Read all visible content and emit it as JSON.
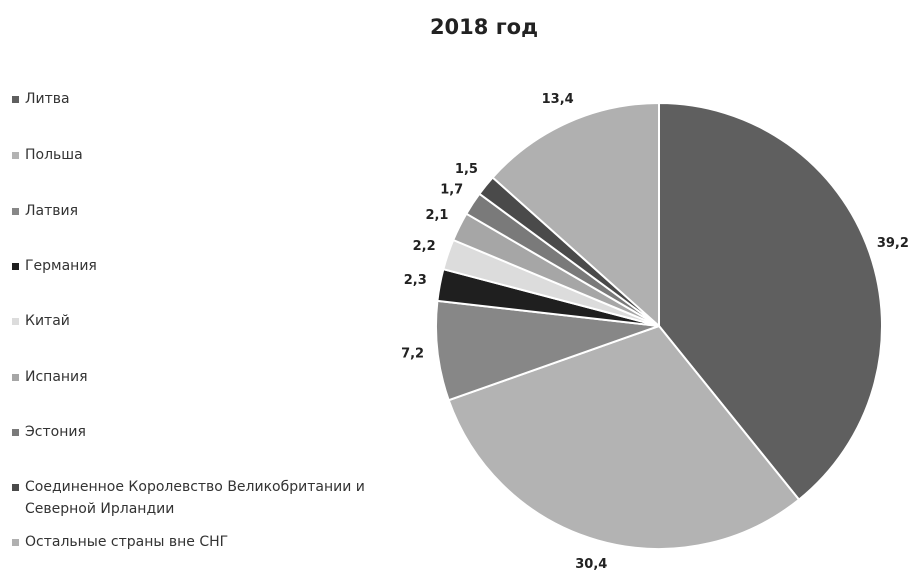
{
  "chart_data": {
    "type": "pie",
    "title": "2018 год",
    "categories": [
      "Литва",
      "Польша",
      "Латвия",
      "Германия",
      "Китай",
      "Испания",
      "Эстония",
      "Соединенное Королевство Великобритании и Северной Ирландии",
      "Остальные страны вне СНГ"
    ],
    "values": [
      39.2,
      30.4,
      7.2,
      2.3,
      2.2,
      2.1,
      1.7,
      1.5,
      13.4
    ],
    "value_labels": [
      "39,2",
      "30,4",
      "7,2",
      "2,3",
      "2,2",
      "2,1",
      "1,7",
      "1,5",
      "13,4"
    ],
    "colors": [
      "#5f5f5f",
      "#b3b3b3",
      "#878787",
      "#1f1f1f",
      "#dcdcdc",
      "#a6a6a6",
      "#7a7a7a",
      "#4a4a4a",
      "#b0b0b0"
    ],
    "legend": "left"
  }
}
